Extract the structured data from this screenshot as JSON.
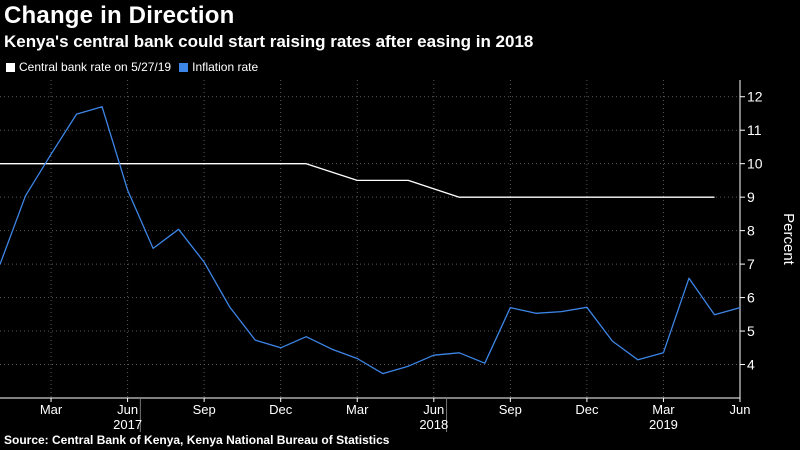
{
  "chart_data": {
    "type": "line",
    "title": "Change in Direction",
    "subtitle": "Kenya's central bank could start raising rates after easing in 2018",
    "ylabel": "Percent",
    "ylim": [
      3,
      12.5
    ],
    "yticks": [
      4,
      5,
      6,
      7,
      8,
      9,
      10,
      11,
      12
    ],
    "xlim": [
      0,
      29
    ],
    "month_ticks": [
      {
        "label": "Mar",
        "x": 2
      },
      {
        "label": "Jun",
        "x": 5
      },
      {
        "label": "Sep",
        "x": 8
      },
      {
        "label": "Dec",
        "x": 11
      },
      {
        "label": "Mar",
        "x": 14
      },
      {
        "label": "Jun",
        "x": 17
      },
      {
        "label": "Sep",
        "x": 20
      },
      {
        "label": "Dec",
        "x": 23
      },
      {
        "label": "Mar",
        "x": 26
      },
      {
        "label": "Jun",
        "x": 29
      }
    ],
    "year_labels": [
      {
        "label": "2017",
        "x": 5
      },
      {
        "label": "2018",
        "x": 17
      },
      {
        "label": "2019",
        "x": 26
      }
    ],
    "year_dividers": [
      5.5,
      17.5
    ],
    "series": [
      {
        "name": "Central bank rate on 5/27/19",
        "color": "#ffffff",
        "points": [
          [
            0,
            10
          ],
          [
            12,
            10
          ],
          [
            14,
            9.5
          ],
          [
            16,
            9.5
          ],
          [
            18,
            9
          ],
          [
            28,
            9
          ]
        ]
      },
      {
        "name": "Inflation rate",
        "color": "#3d85e6",
        "points": [
          [
            0,
            6.99
          ],
          [
            1,
            9.04
          ],
          [
            2,
            10.28
          ],
          [
            3,
            11.48
          ],
          [
            4,
            11.7
          ],
          [
            5,
            9.21
          ],
          [
            6,
            7.47
          ],
          [
            7,
            8.04
          ],
          [
            8,
            7.06
          ],
          [
            9,
            5.72
          ],
          [
            10,
            4.73
          ],
          [
            11,
            4.5
          ],
          [
            12,
            4.83
          ],
          [
            13,
            4.46
          ],
          [
            14,
            4.18
          ],
          [
            15,
            3.73
          ],
          [
            16,
            3.95
          ],
          [
            17,
            4.28
          ],
          [
            18,
            4.35
          ],
          [
            19,
            4.04
          ],
          [
            20,
            5.7
          ],
          [
            21,
            5.53
          ],
          [
            22,
            5.58
          ],
          [
            23,
            5.71
          ],
          [
            24,
            4.7
          ],
          [
            25,
            4.14
          ],
          [
            26,
            4.35
          ],
          [
            27,
            6.58
          ],
          [
            28,
            5.49
          ],
          [
            29,
            5.7
          ]
        ]
      }
    ]
  },
  "source": "Source: Central Bank of Kenya, Kenya National Bureau of Statistics"
}
